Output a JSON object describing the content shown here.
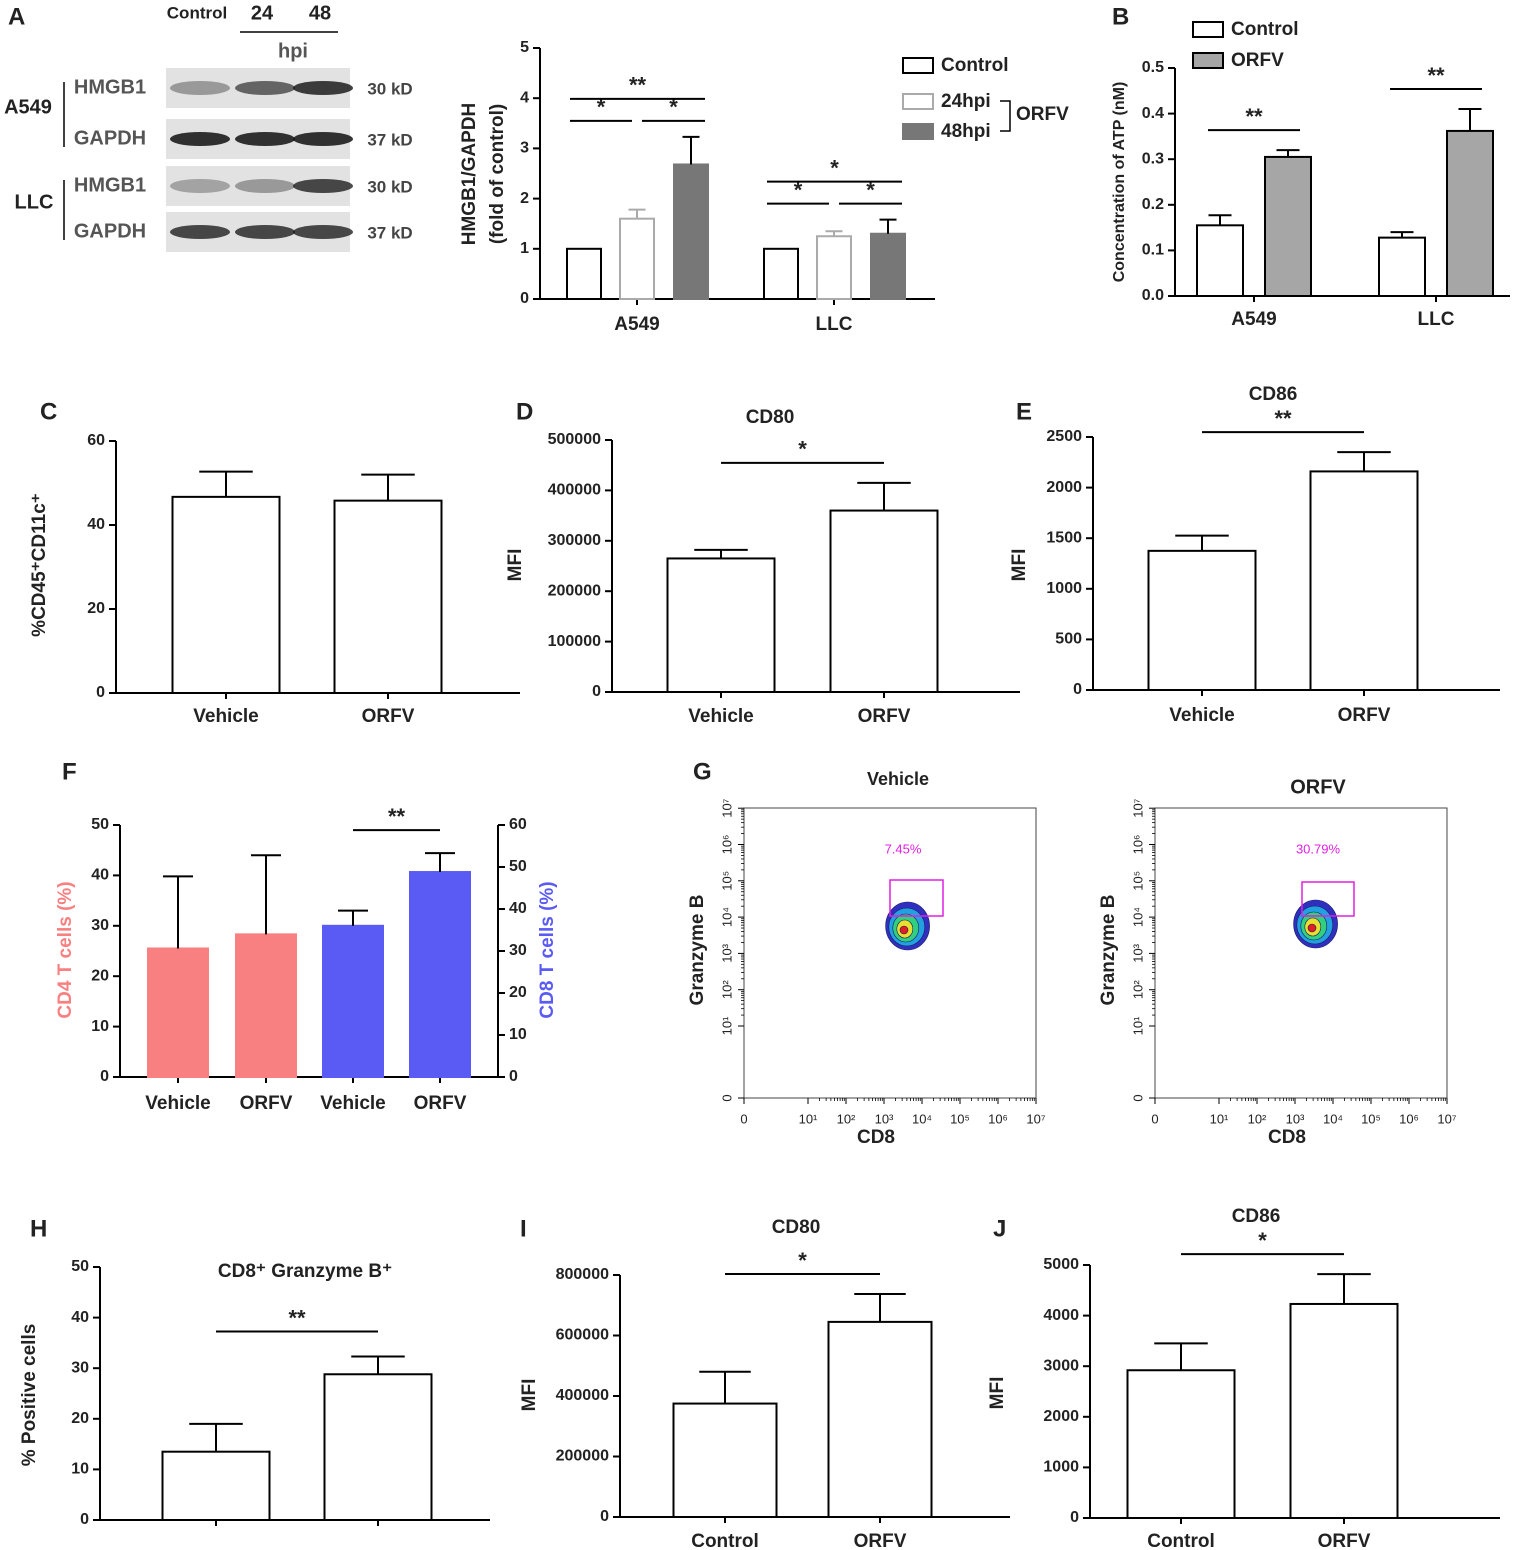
{
  "blot": {
    "panel": "A",
    "lanes": [
      "Control",
      "24",
      "48"
    ],
    "time_unit": "hpi",
    "cell_lines": [
      {
        "name": "A549",
        "rows": [
          {
            "protein": "HMGB1",
            "size": "30 kD"
          },
          {
            "protein": "GAPDH",
            "size": "37 kD"
          }
        ]
      },
      {
        "name": "LLC",
        "rows": [
          {
            "protein": "HMGB1",
            "size": "30 kD"
          },
          {
            "protein": "GAPDH",
            "size": "37 kD"
          }
        ]
      }
    ]
  },
  "chart_data": [
    {
      "type": "bar",
      "ylabel": [
        "HMGB1/GAPDH",
        "(fold of control)"
      ],
      "categories": [
        "A549",
        "LLC"
      ],
      "legend_group": "ORFV",
      "series": [
        {
          "name": "Control",
          "color": "#000000",
          "fill": "#ffffff",
          "values": [
            1,
            1
          ],
          "errors": [
            0,
            0
          ]
        },
        {
          "name": "24hpi",
          "color": "#aaaaaa",
          "fill": "#ffffff",
          "values": [
            1.6,
            1.25
          ],
          "errors": [
            0.18,
            0.1
          ]
        },
        {
          "name": "48hpi",
          "color": "#777777",
          "fill": "#777777",
          "values": [
            2.68,
            1.3
          ],
          "errors": [
            0.55,
            0.28
          ]
        }
      ],
      "ylim": [
        0,
        5
      ],
      "yticks": [
        0,
        1,
        2,
        3,
        4,
        5
      ],
      "significance": [
        [
          "*",
          "*",
          "**"
        ],
        [
          "*",
          "*",
          "*"
        ]
      ]
    },
    {
      "type": "bar",
      "panel": "B",
      "ylabel": "Concentration of ATP (nM)",
      "categories": [
        "A549",
        "LLC"
      ],
      "series": [
        {
          "name": "Control",
          "color": "#000000",
          "fill": "#ffffff",
          "values": [
            0.155,
            0.128
          ],
          "errors": [
            0.022,
            0.012
          ]
        },
        {
          "name": "ORFV",
          "color": "#000000",
          "fill": "#a6a6a6",
          "values": [
            0.305,
            0.362
          ],
          "errors": [
            0.015,
            0.048
          ]
        }
      ],
      "ylim": [
        0,
        0.5
      ],
      "yticks": [
        {
          "value": 0,
          "label": "0.0"
        },
        {
          "value": 0.1,
          "label": "0.1"
        },
        {
          "value": 0.2,
          "label": "0.2"
        },
        {
          "value": 0.3,
          "label": "0.3"
        },
        {
          "value": 0.4,
          "label": "0.4"
        },
        {
          "value": 0.5,
          "label": "0.5"
        }
      ],
      "significance": [
        "**",
        "**"
      ]
    },
    {
      "type": "bar",
      "panel": "C",
      "ylabel": "%CD45⁺CD11c⁺",
      "categories": [
        "Vehicle",
        "ORFV"
      ],
      "series": [
        {
          "color": "#000000",
          "fill": "#ffffff",
          "values": [
            46.7,
            45.8
          ],
          "errors": [
            6,
            6.2
          ]
        }
      ],
      "ylim": [
        0,
        60
      ],
      "yticks": [
        0,
        20,
        40,
        60
      ]
    },
    {
      "type": "bar",
      "panel": "D",
      "title": "CD80",
      "ylabel": "MFI",
      "categories": [
        "Vehicle",
        "ORFV"
      ],
      "series": [
        {
          "color": "#000000",
          "fill": "#ffffff",
          "values": [
            265000,
            360000
          ],
          "errors": [
            17000,
            55000
          ]
        }
      ],
      "ylim": [
        0,
        500000
      ],
      "yticks": [
        0,
        100000,
        200000,
        300000,
        400000,
        500000
      ],
      "significance": "*"
    },
    {
      "type": "bar",
      "panel": "E",
      "title": "CD86",
      "ylabel": "MFI",
      "categories": [
        "Vehicle",
        "ORFV"
      ],
      "series": [
        {
          "color": "#000000",
          "fill": "#ffffff",
          "values": [
            1375,
            2160
          ],
          "errors": [
            150,
            190
          ]
        }
      ],
      "ylim": [
        0,
        2500
      ],
      "yticks": [
        0,
        500,
        1000,
        1500,
        2000,
        2500
      ],
      "significance": "**"
    },
    {
      "type": "bar",
      "panel": "F",
      "ylabel": "CD4  T cells (%)",
      "y2label": "CD8 T cells (%)",
      "categories": [
        "Vehicle",
        "ORFV",
        "Vehicle",
        "ORFV"
      ],
      "series": [
        {
          "color": "#f88080",
          "fill": "#f88080",
          "values": [
            25.5,
            28.3,
            null,
            null
          ],
          "errors": [
            14.3,
            15.7,
            null,
            null
          ]
        },
        {
          "color": "#5a5af5",
          "fill": "#5a5af5",
          "axis": "y2",
          "values": [
            null,
            null,
            36,
            48.8
          ],
          "errors": [
            null,
            null,
            3.6,
            4.5
          ]
        }
      ],
      "ylim": [
        0,
        50
      ],
      "yticks": [
        0,
        10,
        20,
        30,
        40,
        50
      ],
      "y2lim": [
        0,
        60
      ],
      "y2ticks": [
        0,
        10,
        20,
        30,
        40,
        50,
        60
      ],
      "significance": "**"
    },
    {
      "type": "bar",
      "panel": "H",
      "title": "CD8⁺ Granzyme B⁺",
      "ylabel": "% Positive cells",
      "categories": [
        null,
        null
      ],
      "series": [
        {
          "color": "#000000",
          "fill": "#ffffff",
          "values": [
            13.5,
            28.8
          ],
          "errors": [
            5.5,
            3.5
          ]
        }
      ],
      "ylim": [
        0,
        50
      ],
      "yticks": [
        0,
        10,
        20,
        30,
        40,
        50
      ],
      "significance": "**"
    },
    {
      "type": "bar",
      "panel": "I",
      "title": "CD80",
      "ylabel": "MFI",
      "categories": [
        "Control",
        "ORFV"
      ],
      "series": [
        {
          "color": "#000000",
          "fill": "#ffffff",
          "values": [
            375000,
            645000
          ],
          "errors": [
            105000,
            92000
          ]
        }
      ],
      "ylim": [
        0,
        800000
      ],
      "yticks": [
        0,
        200000,
        400000,
        600000,
        800000
      ],
      "significance": "*"
    },
    {
      "type": "bar",
      "panel": "J",
      "title": "CD86",
      "ylabel": "MFI",
      "categories": [
        "Control",
        "ORFV"
      ],
      "series": [
        {
          "color": "#000000",
          "fill": "#ffffff",
          "values": [
            2920,
            4230
          ],
          "errors": [
            530,
            590
          ]
        }
      ],
      "ylim": [
        0,
        5000
      ],
      "yticks": [
        0,
        1000,
        2000,
        3000,
        4000,
        5000
      ],
      "significance": "*"
    }
  ],
  "flow": {
    "panel": "G",
    "xlabel": "CD8",
    "ylabel": "Granzyme B",
    "lim": [
      0,
      10000000
    ],
    "ticks": [
      {
        "value": 0,
        "label": "0"
      },
      {
        "value": 10,
        "label": "10¹"
      },
      {
        "value": 100,
        "label": "10²"
      },
      {
        "value": 1000,
        "label": "10³"
      },
      {
        "value": 10000,
        "label": "10⁴"
      },
      {
        "value": 100000,
        "label": "10⁵"
      },
      {
        "value": 1000000,
        "label": "10⁶"
      },
      {
        "value": 10000000,
        "label": "10⁷"
      }
    ],
    "plots": [
      {
        "title": "Vehicle",
        "gate": 7.45,
        "gate_label": "7.45%"
      },
      {
        "title": "ORFV",
        "gate": 30.79,
        "gate_label": "30.79%"
      }
    ]
  }
}
